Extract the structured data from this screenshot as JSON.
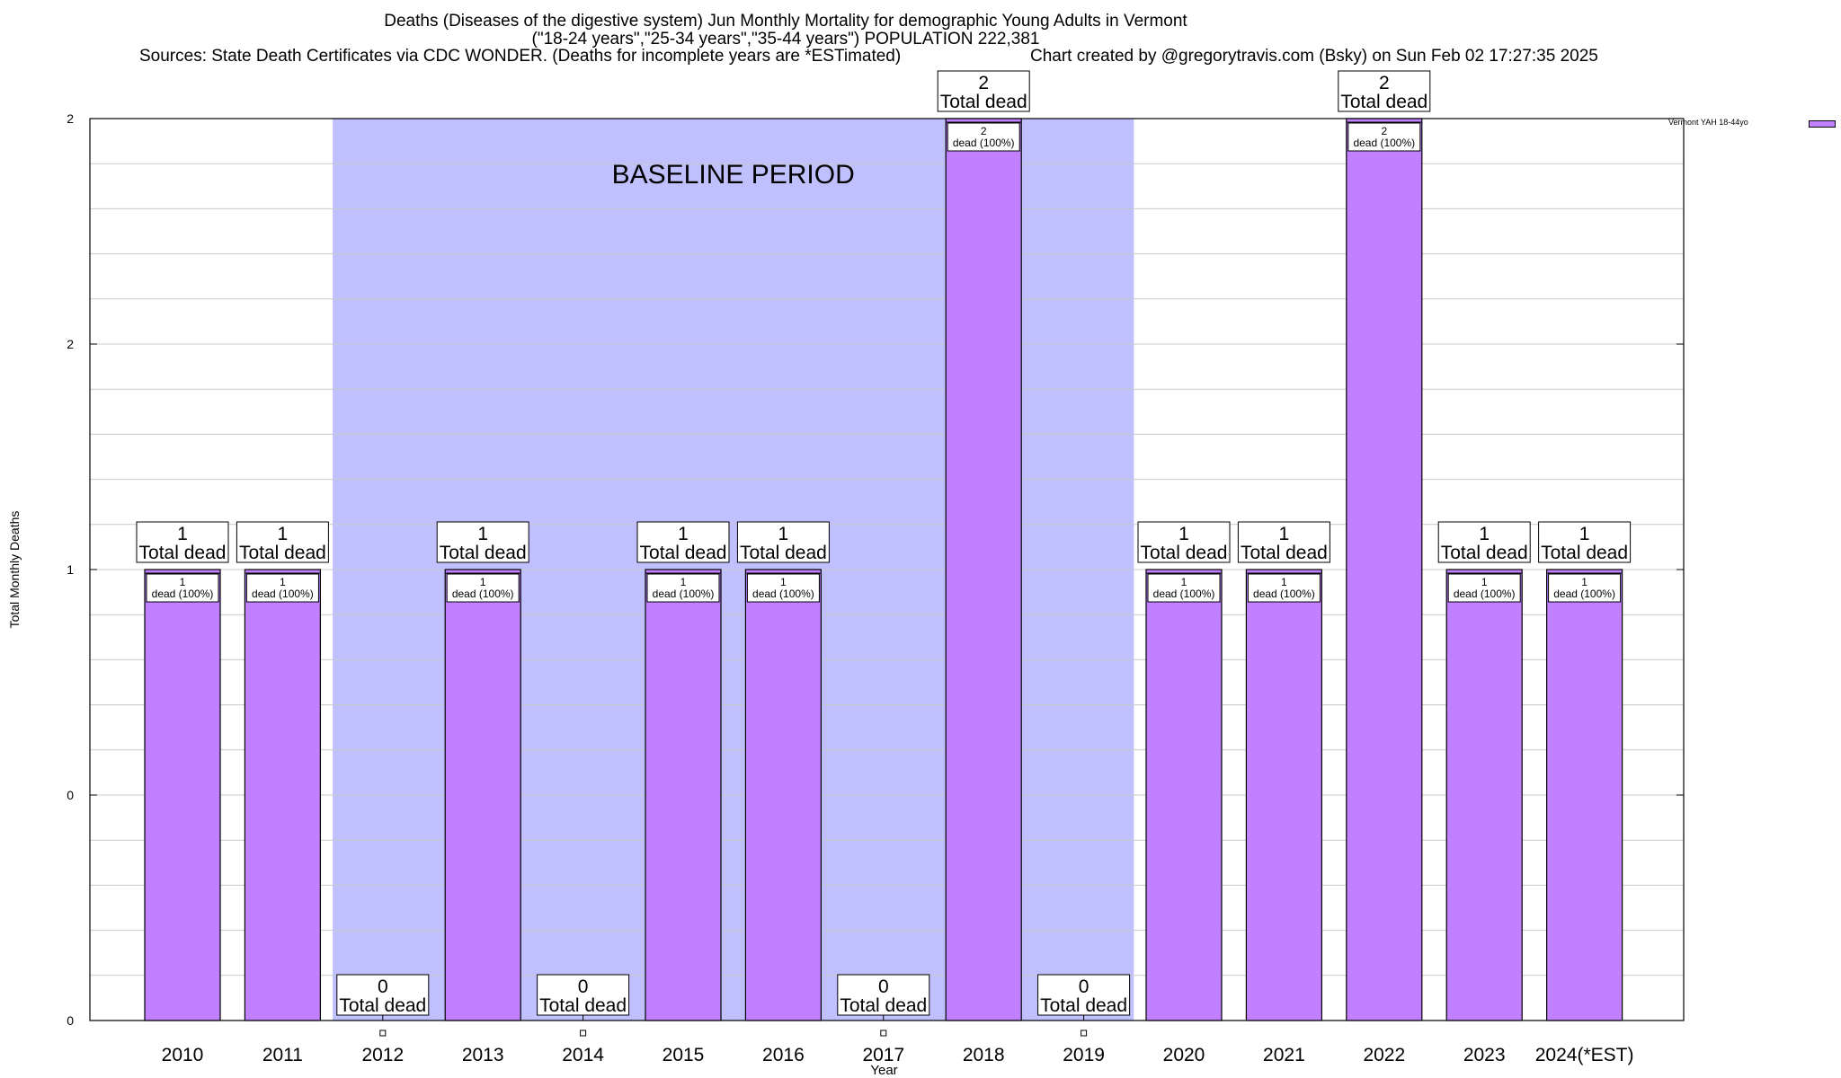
{
  "title_lines": [
    "Deaths (Diseases of the digestive system) Jun Monthly Mortality for demographic Young Adults in Vermont",
    "(\"18-24 years\",\"25-34 years\",\"35-44 years\") POPULATION 222,381"
  ],
  "source": "Sources: State Death Certificates via CDC WONDER. (Deaths for incomplete years are *ESTimated)",
  "credit": "Chart created by @gregorytravis.com (Bsky) on Sun Feb 02 17:27:35 2025",
  "colors": {
    "bar": "#c080ff",
    "baseline_band": "#c0c0ff",
    "grid": "#c8c8c8"
  },
  "chart_data": {
    "type": "bar",
    "title": "Deaths (Diseases of the digestive system) Jun Monthly Mortality for demographic Young Adults in Vermont",
    "xlabel": "Year",
    "ylabel": "Total Monthly Deaths",
    "categories": [
      "2010",
      "2011",
      "2012",
      "2013",
      "2014",
      "2015",
      "2016",
      "2017",
      "2018",
      "2019",
      "2020",
      "2021",
      "2022",
      "2023",
      "2024(*EST)"
    ],
    "series": [
      {
        "name": "Vermont YAH 18-44yo",
        "values": [
          1,
          1,
          0,
          1,
          0,
          1,
          1,
          0,
          2,
          0,
          1,
          1,
          2,
          1,
          1
        ]
      }
    ],
    "ylim": [
      0,
      2
    ],
    "yticks": [
      {
        "value": 0,
        "label": "0"
      },
      {
        "value": 0.5,
        "label": "0"
      },
      {
        "value": 1,
        "label": "1"
      },
      {
        "value": 1.5,
        "label": "2"
      },
      {
        "value": 2,
        "label": "2"
      }
    ],
    "grid": true,
    "legend_position": "top-right",
    "baseline_period": {
      "label": "BASELINE PERIOD",
      "start_category": "2012",
      "end_category": "2019"
    },
    "total_label_suffix": "Total dead",
    "inner_label_suffix": "dead (100%)"
  }
}
